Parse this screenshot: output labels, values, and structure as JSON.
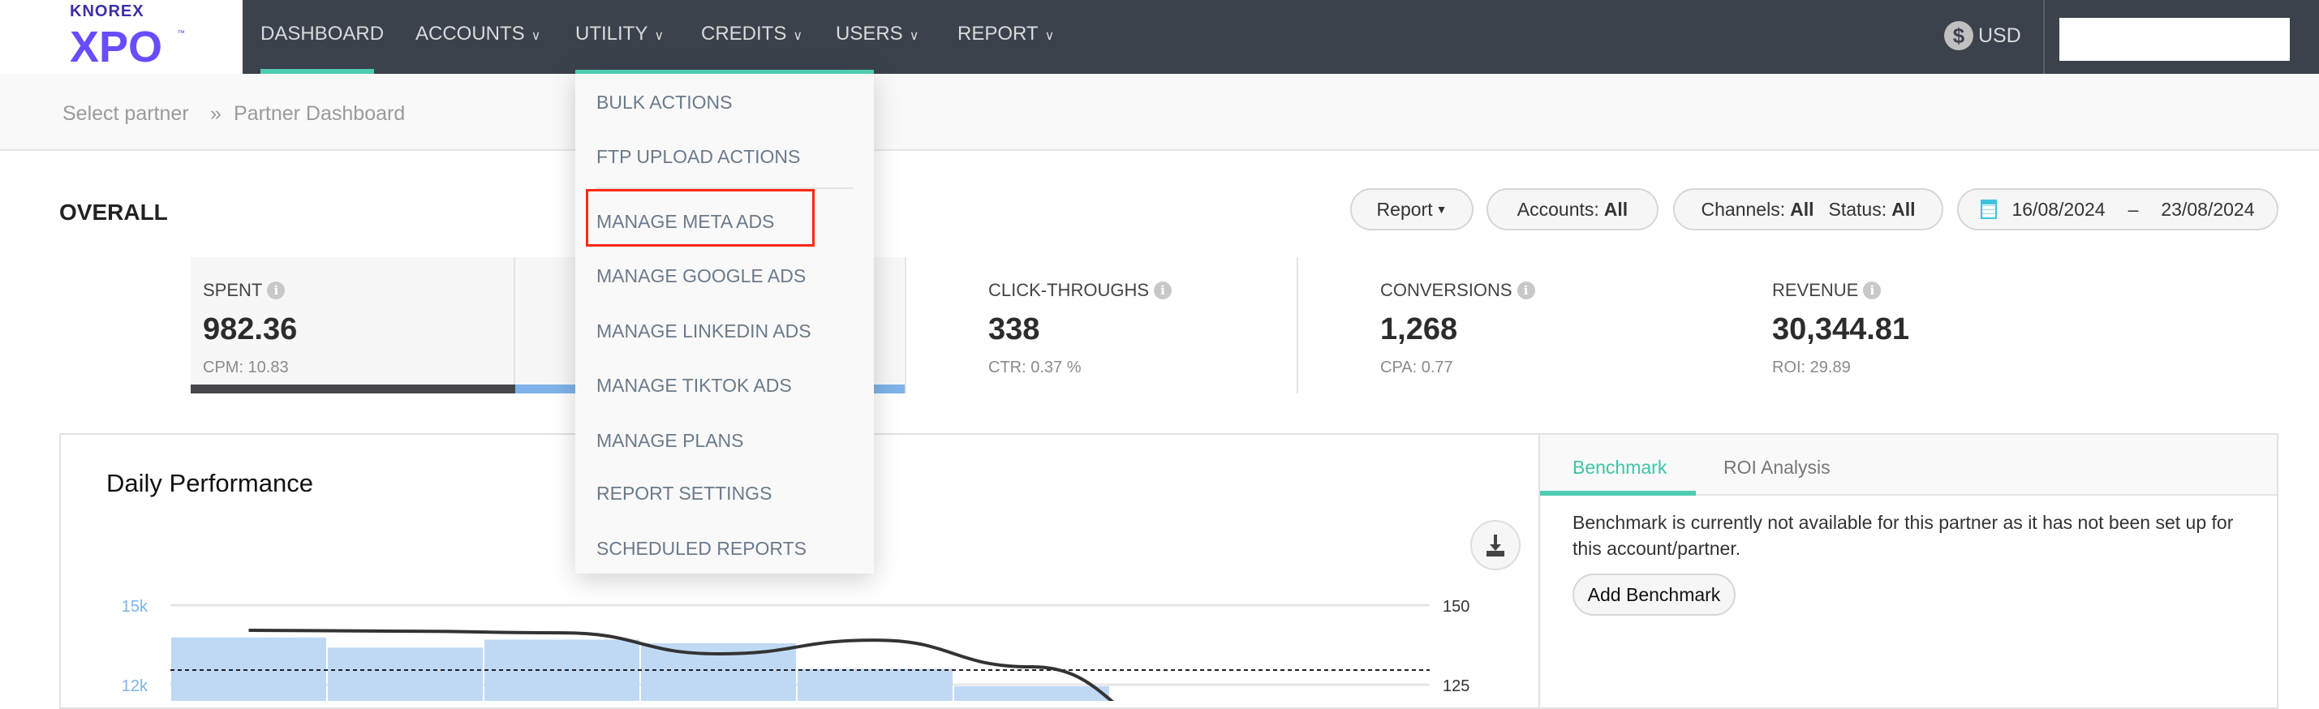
{
  "logo": {
    "top": "KNOREX",
    "main": "XPO",
    "tm": "™"
  },
  "nav": {
    "items": [
      {
        "label": "DASHBOARD",
        "dropdown": false
      },
      {
        "label": "ACCOUNTS",
        "dropdown": true
      },
      {
        "label": "UTILITY",
        "dropdown": true
      },
      {
        "label": "CREDITS",
        "dropdown": true
      },
      {
        "label": "USERS",
        "dropdown": true
      },
      {
        "label": "REPORT",
        "dropdown": true
      }
    ],
    "active": "DASHBOARD",
    "currency": "USD",
    "currency_icon": "dollar-circle-icon",
    "accent": "#4ecbb0"
  },
  "breadcrumb": {
    "items": [
      "Select partner",
      "Partner Dashboard"
    ],
    "separator": "»"
  },
  "utility_menu": {
    "items": [
      "BULK ACTIONS",
      "FTP UPLOAD ACTIONS",
      "MANAGE META ADS",
      "MANAGE GOOGLE ADS",
      "MANAGE LINKEDIN ADS",
      "MANAGE TIKTOK ADS",
      "MANAGE PLANS",
      "REPORT SETTINGS",
      "SCHEDULED REPORTS"
    ],
    "highlighted": "MANAGE META ADS",
    "highlight_color": "#ff2a10"
  },
  "overall": {
    "title": "OVERALL",
    "filters": {
      "report": "Report",
      "accounts_label": "Accounts:",
      "accounts_value": "All",
      "channels_label": "Channels:",
      "channels_value": "All",
      "status_label": "Status:",
      "status_value": "All",
      "date_from": "16/08/2024",
      "date_sep": "–",
      "date_to": "23/08/2024"
    }
  },
  "kpis": [
    {
      "label": "SPENT",
      "value": "982.36",
      "sub": "CPM: 10.83"
    },
    {
      "label": "CLICK-THROUGHS",
      "value": "338",
      "sub": "CTR: 0.37 %"
    },
    {
      "label": "CONVERSIONS",
      "value": "1,268",
      "sub": "CPA: 0.77"
    },
    {
      "label": "REVENUE",
      "value": "30,344.81",
      "sub": "ROI: 29.89"
    }
  ],
  "daily": {
    "title": "Daily Performance",
    "download_icon": "download-icon"
  },
  "chart_data": {
    "type": "bar",
    "left_axis": {
      "ticks": [
        "15k",
        "12k"
      ],
      "tick_values": [
        15000,
        12000
      ],
      "color": "#7ab3e6"
    },
    "right_axis": {
      "ticks": [
        "150",
        "125"
      ],
      "tick_values": [
        150,
        125
      ]
    },
    "bars": {
      "values": [
        13780,
        13400,
        13700,
        13560,
        12600,
        11940
      ],
      "color": "#bfd9f5"
    },
    "line": {
      "values": [
        142.1,
        141.8,
        141.3,
        134.7,
        139,
        130.6,
        110
      ],
      "color": "#333333"
    },
    "reference_line": {
      "value": 12550,
      "style": "dashed"
    },
    "grid": true
  },
  "side": {
    "tabs": [
      "Benchmark",
      "ROI Analysis"
    ],
    "active_tab": "Benchmark",
    "message": "Benchmark is currently not available for this partner as it has not been set up for this account/partner.",
    "button": "Add Benchmark"
  }
}
